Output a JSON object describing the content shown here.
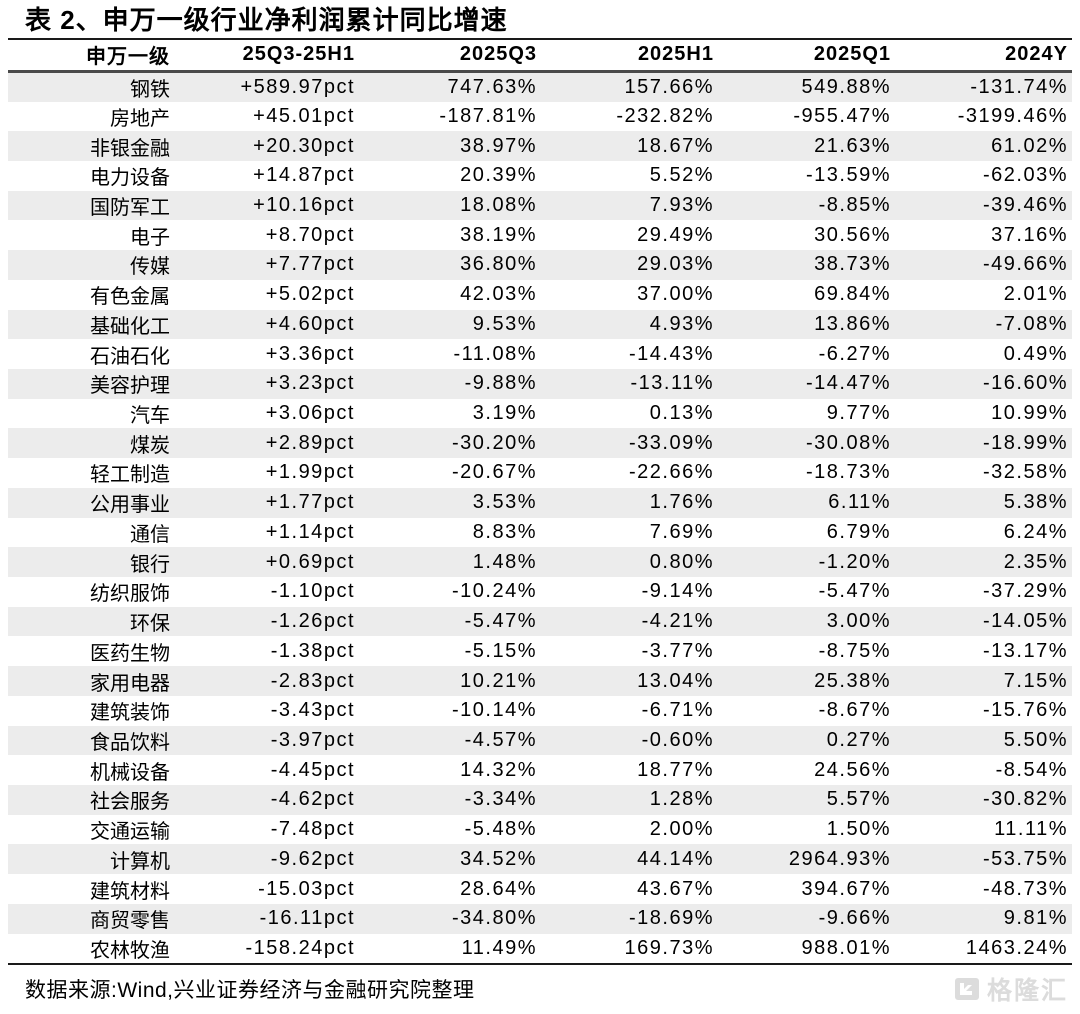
{
  "title": "表 2、申万一级行业净利润累计同比增速",
  "chart_data": {
    "type": "table",
    "title": "表 2、申万一级行业净利润累计同比增速",
    "columns": [
      "申万一级",
      "25Q3-25H1",
      "2025Q3",
      "2025H1",
      "2025Q1",
      "2024Y"
    ],
    "rows": [
      [
        "钢铁",
        "+589.97pct",
        "747.63%",
        "157.66%",
        "549.88%",
        "-131.74%"
      ],
      [
        "房地产",
        "+45.01pct",
        "-187.81%",
        "-232.82%",
        "-955.47%",
        "-3199.46%"
      ],
      [
        "非银金融",
        "+20.30pct",
        "38.97%",
        "18.67%",
        "21.63%",
        "61.02%"
      ],
      [
        "电力设备",
        "+14.87pct",
        "20.39%",
        "5.52%",
        "-13.59%",
        "-62.03%"
      ],
      [
        "国防军工",
        "+10.16pct",
        "18.08%",
        "7.93%",
        "-8.85%",
        "-39.46%"
      ],
      [
        "电子",
        "+8.70pct",
        "38.19%",
        "29.49%",
        "30.56%",
        "37.16%"
      ],
      [
        "传媒",
        "+7.77pct",
        "36.80%",
        "29.03%",
        "38.73%",
        "-49.66%"
      ],
      [
        "有色金属",
        "+5.02pct",
        "42.03%",
        "37.00%",
        "69.84%",
        "2.01%"
      ],
      [
        "基础化工",
        "+4.60pct",
        "9.53%",
        "4.93%",
        "13.86%",
        "-7.08%"
      ],
      [
        "石油石化",
        "+3.36pct",
        "-11.08%",
        "-14.43%",
        "-6.27%",
        "0.49%"
      ],
      [
        "美容护理",
        "+3.23pct",
        "-9.88%",
        "-13.11%",
        "-14.47%",
        "-16.60%"
      ],
      [
        "汽车",
        "+3.06pct",
        "3.19%",
        "0.13%",
        "9.77%",
        "10.99%"
      ],
      [
        "煤炭",
        "+2.89pct",
        "-30.20%",
        "-33.09%",
        "-30.08%",
        "-18.99%"
      ],
      [
        "轻工制造",
        "+1.99pct",
        "-20.67%",
        "-22.66%",
        "-18.73%",
        "-32.58%"
      ],
      [
        "公用事业",
        "+1.77pct",
        "3.53%",
        "1.76%",
        "6.11%",
        "5.38%"
      ],
      [
        "通信",
        "+1.14pct",
        "8.83%",
        "7.69%",
        "6.79%",
        "6.24%"
      ],
      [
        "银行",
        "+0.69pct",
        "1.48%",
        "0.80%",
        "-1.20%",
        "2.35%"
      ],
      [
        "纺织服饰",
        "-1.10pct",
        "-10.24%",
        "-9.14%",
        "-5.47%",
        "-37.29%"
      ],
      [
        "环保",
        "-1.26pct",
        "-5.47%",
        "-4.21%",
        "3.00%",
        "-14.05%"
      ],
      [
        "医药生物",
        "-1.38pct",
        "-5.15%",
        "-3.77%",
        "-8.75%",
        "-13.17%"
      ],
      [
        "家用电器",
        "-2.83pct",
        "10.21%",
        "13.04%",
        "25.38%",
        "7.15%"
      ],
      [
        "建筑装饰",
        "-3.43pct",
        "-10.14%",
        "-6.71%",
        "-8.67%",
        "-15.76%"
      ],
      [
        "食品饮料",
        "-3.97pct",
        "-4.57%",
        "-0.60%",
        "0.27%",
        "5.50%"
      ],
      [
        "机械设备",
        "-4.45pct",
        "14.32%",
        "18.77%",
        "24.56%",
        "-8.54%"
      ],
      [
        "社会服务",
        "-4.62pct",
        "-3.34%",
        "1.28%",
        "5.57%",
        "-30.82%"
      ],
      [
        "交通运输",
        "-7.48pct",
        "-5.48%",
        "2.00%",
        "1.50%",
        "11.11%"
      ],
      [
        "计算机",
        "-9.62pct",
        "34.52%",
        "44.14%",
        "2964.93%",
        "-53.75%"
      ],
      [
        "建筑材料",
        "-15.03pct",
        "28.64%",
        "43.67%",
        "394.67%",
        "-48.73%"
      ],
      [
        "商贸零售",
        "-16.11pct",
        "-34.80%",
        "-18.69%",
        "-9.66%",
        "9.81%"
      ],
      [
        "农林牧渔",
        "-158.24pct",
        "11.49%",
        "169.73%",
        "988.01%",
        "1463.24%"
      ]
    ],
    "layout_hints": {
      "row_striping": "odd rows shaded",
      "alignment": "all columns right-aligned",
      "grid": "horizontal rules only: under title, under header, above footer"
    }
  },
  "footer": {
    "source": "数据来源:Wind,兴业证券经济与金融研究院整理"
  },
  "watermark": {
    "label": "格隆汇",
    "icon": "gelonghui-logo-icon"
  },
  "colors": {
    "stripe": "#ececec",
    "rule": "#1a1a1a",
    "header_rule": "#4a4a4a",
    "text": "#000000",
    "watermark": "#dcdcdc",
    "background": "#ffffff"
  }
}
